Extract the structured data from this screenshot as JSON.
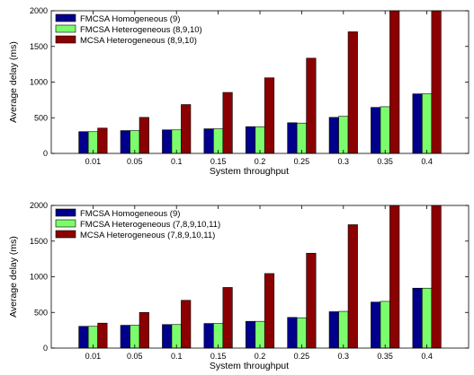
{
  "chart_data": [
    {
      "type": "bar",
      "title": "",
      "xlabel": "System throughput",
      "ylabel": "Average delay (ms)",
      "ylim": [
        0,
        2000
      ],
      "yticks": [
        0,
        500,
        1000,
        1500,
        2000
      ],
      "grid": false,
      "legend_position": "top-left",
      "categories": [
        "0.01",
        "0.05",
        "0.1",
        "0.15",
        "0.2",
        "0.25",
        "0.3",
        "0.35",
        "0.4"
      ],
      "series": [
        {
          "name": "FMCSA Homogeneous (9)",
          "color": "#00008b",
          "values": [
            305,
            320,
            330,
            345,
            375,
            430,
            505,
            645,
            835
          ]
        },
        {
          "name": "FMCSA Heterogeneous (8,9,10)",
          "color": "#7cfc6c",
          "values": [
            305,
            320,
            330,
            345,
            375,
            425,
            520,
            655,
            835
          ]
        },
        {
          "name": "MCSA Heterogeneous (8,9,10)",
          "color": "#8b0000",
          "values": [
            355,
            505,
            685,
            855,
            1060,
            1335,
            1705,
            2000,
            2000
          ]
        }
      ]
    },
    {
      "type": "bar",
      "title": "",
      "xlabel": "System throughput",
      "ylabel": "Average delay (ms)",
      "ylim": [
        0,
        2000
      ],
      "yticks": [
        0,
        500,
        1000,
        1500,
        2000
      ],
      "grid": false,
      "legend_position": "top-left",
      "categories": [
        "0.01",
        "0.05",
        "0.1",
        "0.15",
        "0.2",
        "0.25",
        "0.3",
        "0.35",
        "0.4"
      ],
      "series": [
        {
          "name": "FMCSA Homogeneous (9)",
          "color": "#00008b",
          "values": [
            305,
            320,
            330,
            345,
            375,
            430,
            510,
            645,
            840
          ]
        },
        {
          "name": "FMCSA Heterogeneous (7,8,9,10,11)",
          "color": "#7cfc6c",
          "values": [
            305,
            320,
            330,
            345,
            375,
            425,
            515,
            655,
            840
          ]
        },
        {
          "name": "MCSA Heterogeneous (7,8,9,10,11)",
          "color": "#8b0000",
          "values": [
            350,
            500,
            670,
            850,
            1045,
            1330,
            1730,
            2000,
            2000
          ]
        }
      ]
    }
  ]
}
